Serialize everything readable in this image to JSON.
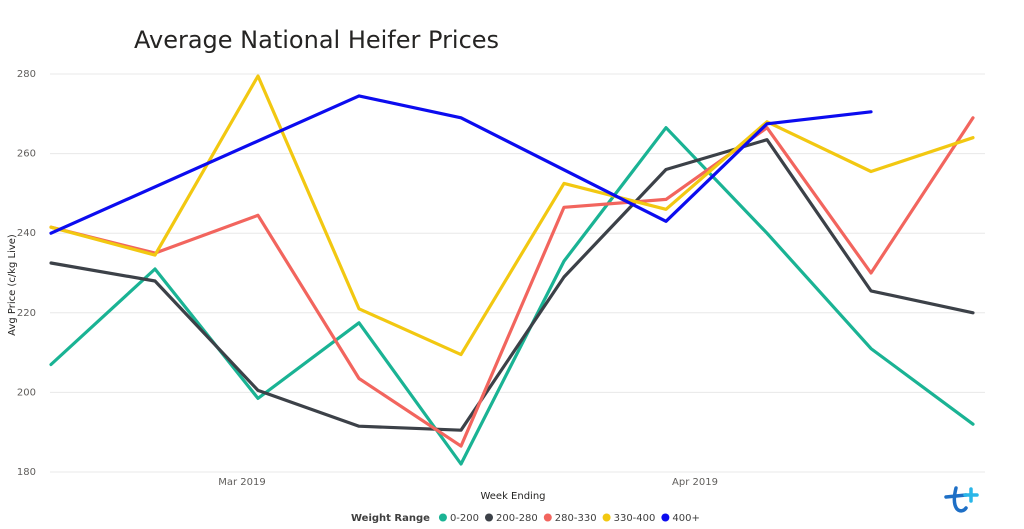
{
  "chart_data": {
    "type": "line",
    "title": "Average National Heifer Prices",
    "xlabel": "Week Ending",
    "ylabel": "Avg Price (c/kg Live)",
    "ylim": [
      180,
      280
    ],
    "yticks": [
      180,
      200,
      220,
      240,
      260,
      280
    ],
    "x_tick_labels": [
      "Mar 2019",
      "Apr 2019"
    ],
    "grid": true,
    "legend_position": "bottom",
    "legend_title": "Weight Range",
    "series": [
      {
        "name": "0-200",
        "color": "#1ab394",
        "values": [
          207,
          231,
          198.5,
          217.5,
          182,
          233,
          266.5,
          240,
          211,
          192
        ]
      },
      {
        "name": "200-280",
        "color": "#3c4148",
        "values": [
          232.5,
          228,
          200.5,
          191.5,
          190.5,
          229,
          256,
          263.5,
          225.5,
          220
        ]
      },
      {
        "name": "280-330",
        "color": "#f2655e",
        "values": [
          241.5,
          235,
          244.5,
          203.5,
          186.5,
          246.5,
          248.5,
          266.5,
          230,
          269
        ]
      },
      {
        "name": "330-400",
        "color": "#f2c811",
        "values": [
          241.5,
          234.5,
          279.5,
          221,
          209.5,
          252.5,
          246,
          268,
          255.5,
          264
        ]
      },
      {
        "name": "400+",
        "color": "#0c0cef",
        "values": [
          240,
          null,
          null,
          274.5,
          269,
          null,
          243,
          267.5,
          270.5,
          null
        ]
      }
    ]
  },
  "watermark_icon": "t-plus-logo-icon"
}
